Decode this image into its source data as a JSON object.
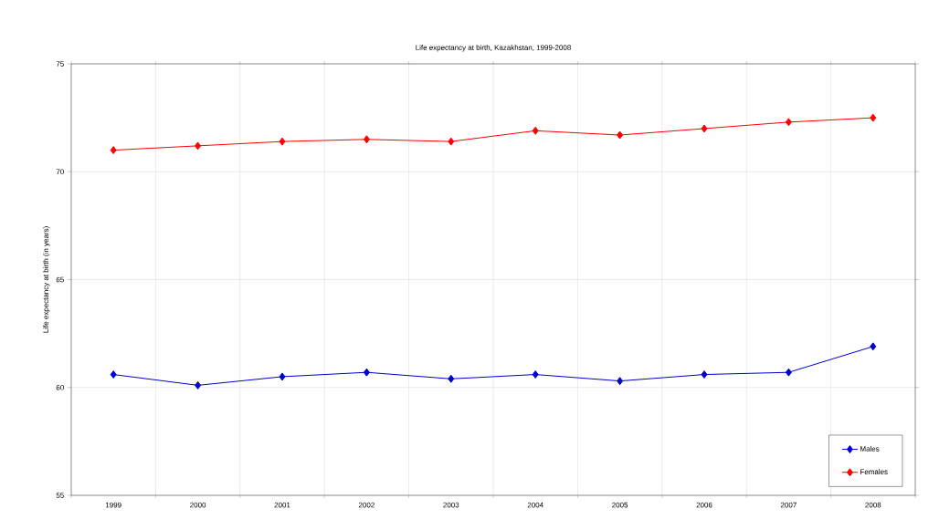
{
  "chart_data": {
    "type": "line",
    "title": "Life expectancy at birth, Kazakhstan, 1999-2008",
    "ylabel": "Life expectancy at birth (in years)",
    "categories": [
      "1999",
      "2000",
      "2001",
      "2002",
      "2003",
      "2004",
      "2005",
      "2006",
      "2007",
      "2008"
    ],
    "series": [
      {
        "name": "Males",
        "color": "#0000cc",
        "values": [
          60.6,
          60.1,
          60.5,
          60.7,
          60.4,
          60.6,
          60.3,
          60.6,
          60.7,
          61.9
        ]
      },
      {
        "name": "Females",
        "color": "#ff0000",
        "values": [
          71.0,
          71.2,
          71.4,
          71.5,
          71.4,
          71.9,
          71.7,
          72.0,
          72.3,
          72.5
        ]
      }
    ],
    "ylim": [
      55,
      75
    ],
    "yticks": [
      55,
      60,
      65,
      70,
      75
    ],
    "grid": true,
    "legend": "bottom right",
    "marker": "diamond",
    "line_style": "solid"
  }
}
